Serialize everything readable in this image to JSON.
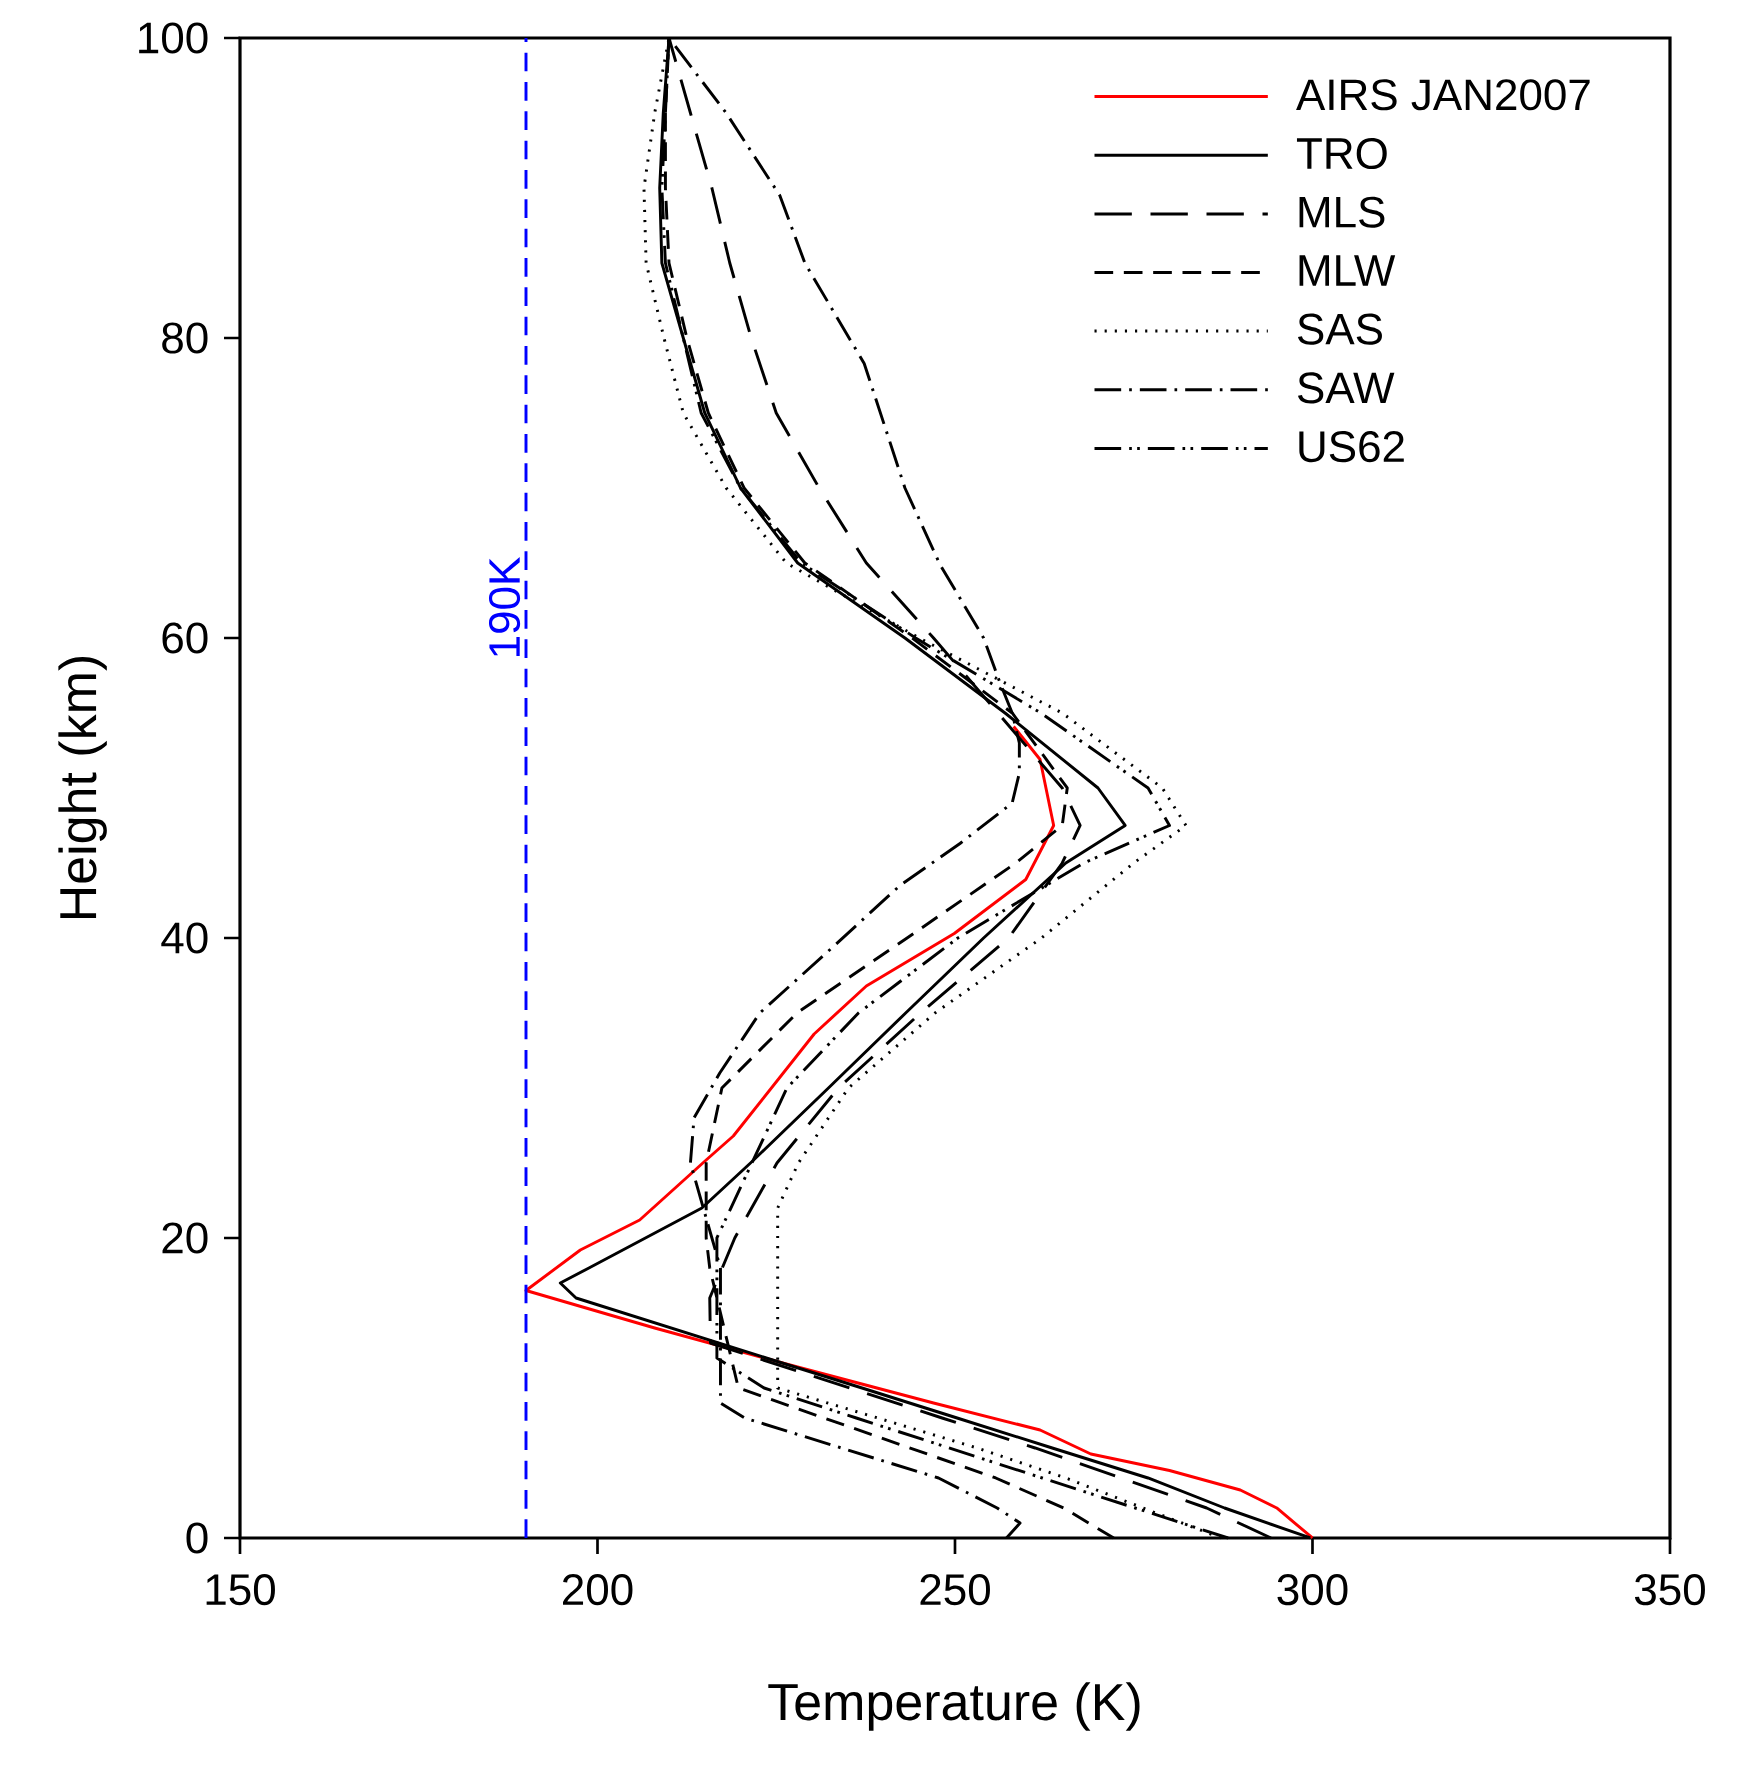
{
  "chart_data": {
    "type": "line",
    "xlabel": "Temperature (K)",
    "ylabel": "Height (km)",
    "xlim": [
      150,
      350
    ],
    "ylim": [
      0,
      100
    ],
    "xticks": [
      150,
      200,
      250,
      300,
      350
    ],
    "yticks": [
      0,
      20,
      40,
      60,
      80,
      100
    ],
    "grid": false,
    "legend": "top right",
    "marker": "none",
    "ref_lines": [
      {
        "axis": "x",
        "value": 190,
        "label": "190K",
        "color": "#0000ff",
        "line_style": "dashed"
      }
    ],
    "series": [
      {
        "name": "AIRS JAN2007",
        "color": "#ff0000",
        "line_style": "solid",
        "x": [
          300,
          295,
          289.9,
          280,
          269,
          261.9,
          247,
          226.4,
          208,
          190,
          197.6,
          205.9,
          215.2,
          219,
          230.3,
          237.6,
          249.9,
          259.9,
          263.8,
          261.9,
          258.2
        ],
        "values": [
          0,
          2,
          3.2,
          4.5,
          5.6,
          7.2,
          9,
          11.6,
          14,
          16.5,
          19.2,
          21.2,
          25.2,
          26.8,
          33.6,
          36.8,
          40.3,
          43.9,
          47.5,
          51.9,
          54.1
        ]
      },
      {
        "name": "TRO",
        "color": "#000000",
        "line_style": "solid",
        "x": [
          299.7,
          287.7,
          277,
          263.6,
          250.3,
          237,
          223.6,
          210.3,
          197,
          194.8,
          198.8,
          206.7,
          214.6,
          221.4,
          232.3,
          243.1,
          254,
          265.5,
          273.8,
          270,
          257,
          243,
          228,
          220,
          215,
          212,
          209,
          208.7,
          209.2,
          210
        ],
        "values": [
          0,
          2,
          4,
          6,
          8,
          10,
          12,
          14,
          16,
          17,
          18,
          20,
          22,
          25,
          30,
          35,
          40,
          45,
          47.5,
          50,
          55,
          60,
          65,
          70,
          75,
          80,
          85,
          90,
          95,
          100
        ]
      },
      {
        "name": "MLS",
        "color": "#000000",
        "line_style": "long dashed",
        "x": [
          294.2,
          285.2,
          273.2,
          261.2,
          248.2,
          235.3,
          222.3,
          215.8,
          215.7,
          219.2,
          225.1,
          233.7,
          245.2,
          257.5,
          265,
          267.5,
          265,
          256,
          247,
          237.6,
          231,
          225,
          221.5,
          218.5,
          216,
          213,
          210
        ],
        "values": [
          0,
          2,
          4,
          6,
          8,
          10,
          12,
          13,
          16,
          20,
          25,
          30,
          35,
          40,
          45,
          47.5,
          50,
          55,
          60,
          65,
          70,
          75,
          80,
          85,
          90,
          95,
          100
        ]
      },
      {
        "name": "MLW",
        "color": "#000000",
        "line_style": "dashed",
        "x": [
          272.2,
          265.2,
          255.7,
          243.7,
          231.7,
          219.7,
          218.7,
          217.7,
          216.7,
          215.7,
          215.2,
          215.2,
          217.4,
          227.9,
          243.3,
          258.5,
          265,
          265.7,
          258,
          244,
          229,
          220.5,
          215.5,
          212.5,
          210,
          209.5,
          209.5,
          210
        ],
        "values": [
          0,
          2,
          4,
          6,
          8,
          10,
          12,
          14,
          16,
          18,
          20,
          25,
          30,
          35,
          40,
          45,
          47.5,
          50,
          55,
          60,
          65,
          70,
          75,
          80,
          85,
          90,
          95,
          100
        ]
      },
      {
        "name": "SAS",
        "color": "#000000",
        "line_style": "dotted",
        "x": [
          287.2,
          276.3,
          265.5,
          253.1,
          239.2,
          225.2,
          225.2,
          228.1,
          235.1,
          247.2,
          262.1,
          275,
          282.3,
          279,
          265,
          245,
          226.4,
          218,
          212,
          209.3,
          206.8,
          206.5,
          208,
          210
        ],
        "values": [
          0,
          2,
          4,
          6,
          8,
          10,
          22,
          25,
          30,
          35,
          40,
          45,
          47.5,
          50,
          55,
          60,
          65,
          70,
          75,
          80,
          85,
          90,
          95,
          100
        ]
      },
      {
        "name": "SAW",
        "color": "#000000",
        "line_style": "dash dot",
        "x": [
          257.2,
          259.1,
          255.9,
          247.7,
          234.1,
          220.6,
          217.2,
          217.2,
          216,
          214.8,
          213,
          213.5,
          217.1,
          222.7,
          232,
          242.3,
          250.7,
          258,
          259,
          259,
          258,
          256.3,
          254,
          247.9,
          243,
          237.3,
          229,
          225.5,
          218,
          210
        ],
        "values": [
          0,
          1,
          2,
          4,
          6,
          8,
          9,
          18,
          20,
          22,
          25,
          28,
          31,
          35,
          39,
          43.5,
          46.3,
          49,
          51,
          53,
          55,
          57,
          60,
          64.9,
          70,
          78.3,
          85,
          89.5,
          95,
          100
        ]
      },
      {
        "name": "US62",
        "color": "#000000",
        "line_style": "dash dot dot",
        "x": [
          288.2,
          275.2,
          262.2,
          249.2,
          236.2,
          223.3,
          216.7,
          216.7,
          216.7,
          221.6,
          226.5,
          236.5,
          250.4,
          268,
          280,
          277,
          262,
          244.5,
          228.5,
          220,
          214.5,
          212,
          209.5,
          209,
          209.5,
          210
        ],
        "values": [
          0,
          2,
          4,
          6,
          8,
          10,
          12,
          16,
          20,
          25,
          30,
          35,
          40,
          45,
          47.5,
          50,
          55,
          60,
          65,
          70,
          75,
          80,
          85,
          90,
          95,
          100
        ]
      }
    ]
  }
}
